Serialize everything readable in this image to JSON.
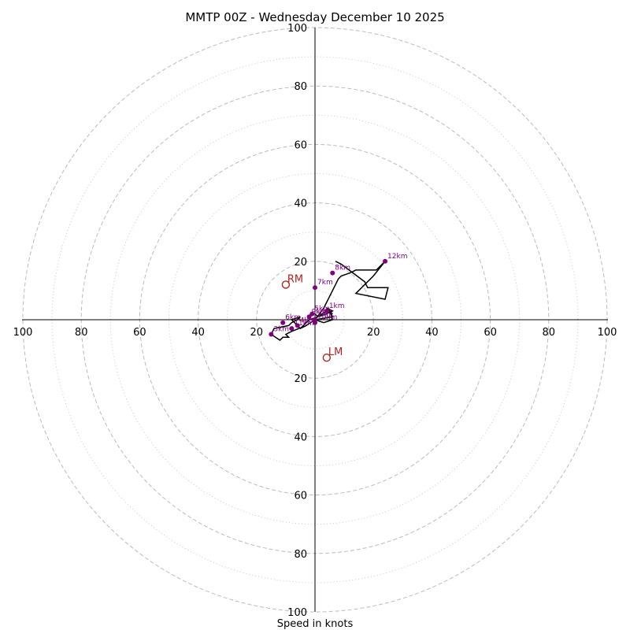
{
  "chart_data": {
    "type": "line",
    "title": "MMTP 00Z - Wednesday December 10 2025",
    "xlabel": "Speed in knots",
    "ylabel": "",
    "xlim": [
      -100,
      100
    ],
    "ylim": [
      -100,
      100
    ],
    "ring_major": [
      20,
      40,
      60,
      80,
      100
    ],
    "ring_minor": [
      10,
      30,
      50,
      70,
      90
    ],
    "ticks": {
      "left": [
        {
          "v": -100,
          "label": "100"
        },
        {
          "v": -80,
          "label": "80"
        },
        {
          "v": -60,
          "label": "60"
        },
        {
          "v": -40,
          "label": "40"
        },
        {
          "v": -20,
          "label": "20"
        }
      ],
      "right": [
        {
          "v": 20,
          "label": "20"
        },
        {
          "v": 40,
          "label": "40"
        },
        {
          "v": 60,
          "label": "60"
        },
        {
          "v": 80,
          "label": "80"
        },
        {
          "v": 100,
          "label": "100"
        }
      ],
      "top": [
        {
          "v": 20,
          "label": "20"
        },
        {
          "v": 40,
          "label": "40"
        },
        {
          "v": 60,
          "label": "60"
        },
        {
          "v": 80,
          "label": "80"
        },
        {
          "v": 100,
          "label": "100"
        }
      ],
      "bottom": [
        {
          "v": -20,
          "label": "20"
        },
        {
          "v": -40,
          "label": "40"
        },
        {
          "v": -60,
          "label": "60"
        },
        {
          "v": -80,
          "label": "80"
        },
        {
          "v": -100,
          "label": "100"
        }
      ]
    },
    "hodograph": {
      "u": [
        0,
        1,
        4,
        6,
        4,
        5,
        6,
        0,
        -3,
        -5,
        -3,
        -8,
        -10,
        -9,
        -11,
        -12,
        -15,
        -14,
        -9,
        -8,
        -6,
        -5,
        -8,
        -7,
        -6,
        -5,
        -4,
        -2,
        1,
        4,
        6,
        5,
        6,
        3,
        0,
        0,
        3,
        6,
        8,
        9,
        12,
        14,
        21,
        24,
        20,
        14,
        24,
        25,
        18,
        17,
        9,
        7
      ],
      "v": [
        2,
        1,
        2,
        3,
        4,
        3,
        1,
        0,
        -2,
        -3,
        -2,
        -4,
        -5,
        -6,
        -6,
        -7,
        -5,
        -3,
        -2,
        -1,
        0,
        1,
        0,
        -1,
        -2,
        -3,
        -2,
        0,
        1,
        3,
        2,
        3,
        0,
        -1,
        0,
        0,
        4,
        10,
        14,
        15,
        16,
        17,
        17,
        20,
        15,
        9,
        7,
        11,
        11,
        13,
        19,
        20
      ]
    },
    "height_labels": [
      {
        "label": "1km",
        "u": 4,
        "v": 3
      },
      {
        "label": "2km",
        "u": 0,
        "v": 0
      },
      {
        "label": "3km",
        "u": -15,
        "v": -5
      },
      {
        "label": "4km",
        "u": -6,
        "v": -2
      },
      {
        "label": "5km",
        "u": -1,
        "v": 2
      },
      {
        "label": "6km",
        "u": -11,
        "v": -1
      },
      {
        "label": "7km",
        "u": 0,
        "v": 11
      },
      {
        "label": "8km",
        "u": 6,
        "v": 16
      },
      {
        "label": "9km",
        "u": -2,
        "v": 1
      },
      {
        "label": "10km",
        "u": 0,
        "v": -1
      },
      {
        "label": "11km",
        "u": -8,
        "v": -3
      },
      {
        "label": "12km",
        "u": 24,
        "v": 20
      }
    ],
    "storm_motions": [
      {
        "label": "RM",
        "u": -10,
        "v": 12
      },
      {
        "label": "LM",
        "u": 4,
        "v": -13
      }
    ]
  }
}
